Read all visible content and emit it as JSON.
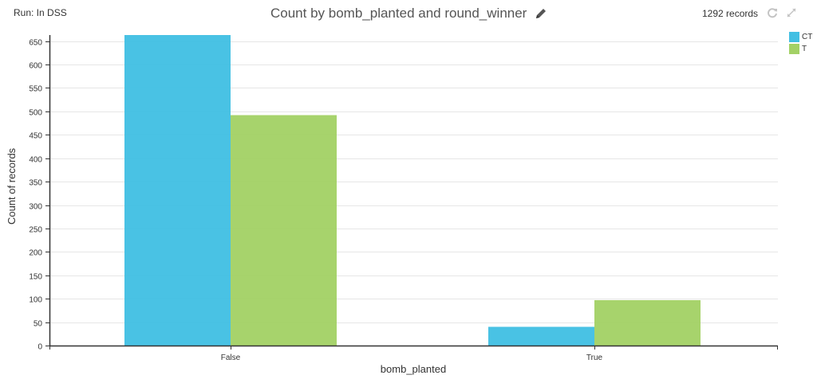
{
  "header": {
    "run_label": "Run: In DSS",
    "title": "Count by bomb_planted and round_winner",
    "records": "1292 records"
  },
  "icons": {
    "edit": "pencil-icon",
    "refresh": "refresh-icon",
    "expand": "expand-icon"
  },
  "colors": {
    "CT": "#42bfe3",
    "T": "#a3d166",
    "grid": "#e6e6e6",
    "axis": "#333333"
  },
  "chart_data": {
    "type": "bar",
    "title": "Count by bomb_planted and round_winner",
    "xlabel": "bomb_planted",
    "ylabel": "Count of records",
    "categories": [
      "False",
      "True"
    ],
    "series": [
      {
        "name": "CT",
        "values": [
          663,
          40
        ]
      },
      {
        "name": "T",
        "values": [
          492,
          97
        ]
      }
    ],
    "ylim": [
      0,
      660
    ],
    "yticks": [
      0,
      50,
      100,
      150,
      200,
      250,
      300,
      350,
      400,
      450,
      500,
      550,
      600,
      650
    ],
    "grid": true,
    "legend_position": "top-right"
  }
}
